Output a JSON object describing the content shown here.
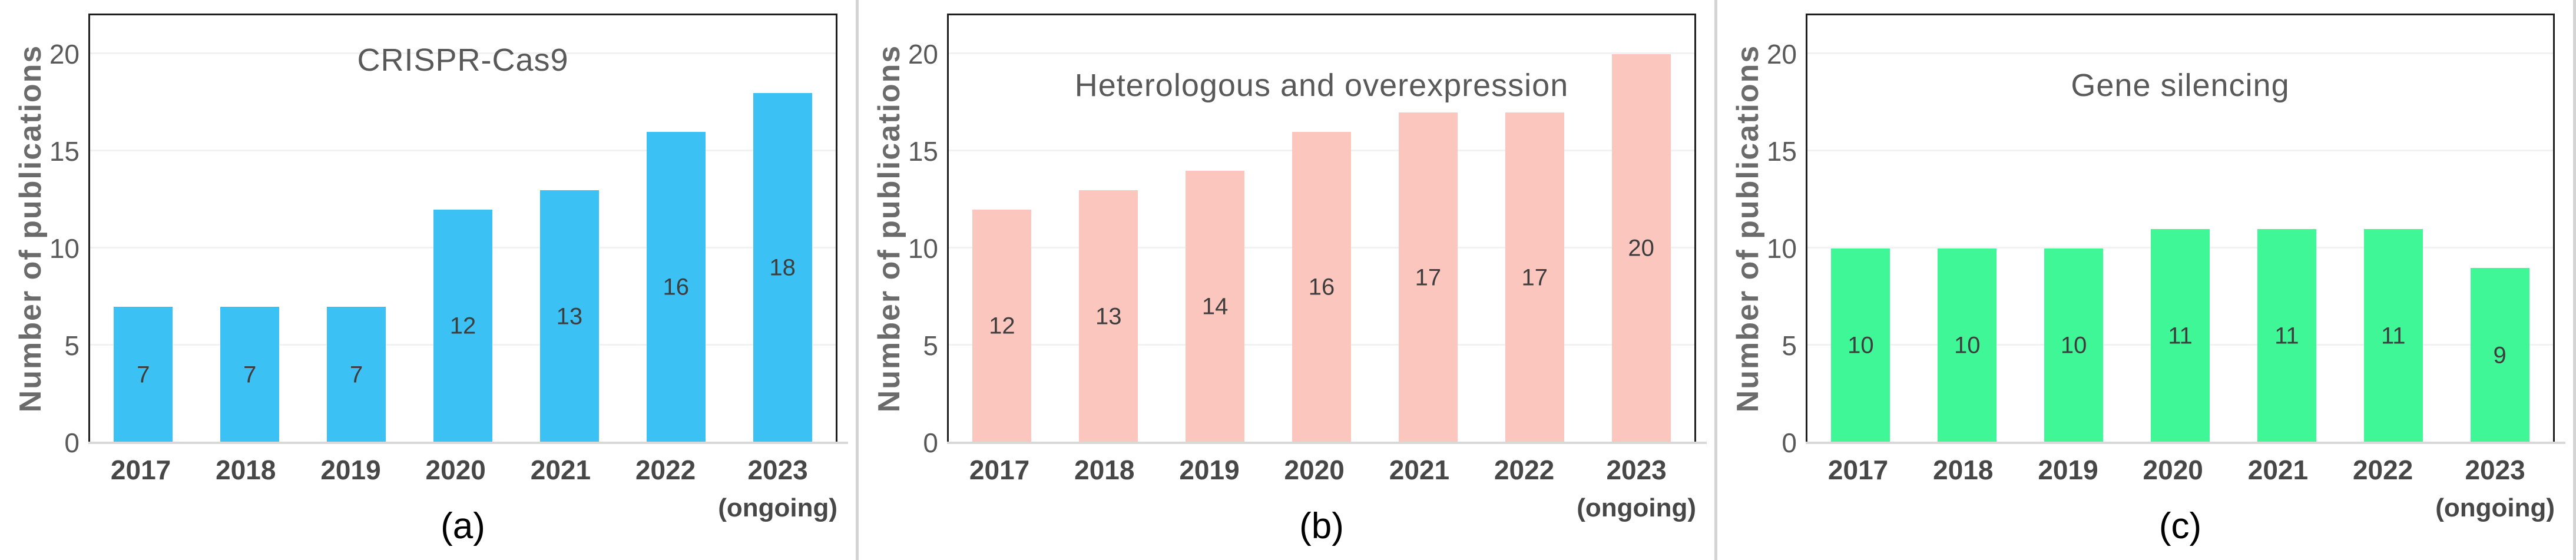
{
  "figure": {
    "ylabel": "Number of publications",
    "last_category_note": "(ongoing)",
    "grid_color": "#f2f2f2",
    "baseline_color": "#d8d8d8",
    "axis_border_color": "#1f1f1f",
    "text_gray": "#595959"
  },
  "chart_data": [
    {
      "type": "bar",
      "title": "CRISPR-Cas9",
      "caption": "(a)",
      "xlabel": "",
      "ylabel": "Number of publications",
      "categories": [
        "2017",
        "2018",
        "2019",
        "2020",
        "2021",
        "2022",
        "2023"
      ],
      "last_category_note": "(ongoing)",
      "values": [
        7,
        7,
        7,
        12,
        13,
        16,
        18
      ],
      "bar_color": "#3cc1f4",
      "ylim": [
        0,
        22
      ],
      "yticks": [
        0,
        5,
        10,
        15,
        20
      ],
      "grid": true,
      "legend": "none"
    },
    {
      "type": "bar",
      "title": "Heterologous and overexpression",
      "caption": "(b)",
      "xlabel": "",
      "ylabel": "Number of publications",
      "categories": [
        "2017",
        "2018",
        "2019",
        "2020",
        "2021",
        "2022",
        "2023"
      ],
      "last_category_note": "(ongoing)",
      "values": [
        12,
        13,
        14,
        16,
        17,
        17,
        20
      ],
      "bar_color": "#fbc6bd",
      "ylim": [
        0,
        22
      ],
      "yticks": [
        0,
        5,
        10,
        15,
        20
      ],
      "grid": true,
      "legend": "none"
    },
    {
      "type": "bar",
      "title": "Gene silencing",
      "caption": "(c)",
      "xlabel": "",
      "ylabel": "Number of publications",
      "categories": [
        "2017",
        "2018",
        "2019",
        "2020",
        "2021",
        "2022",
        "2023"
      ],
      "last_category_note": "(ongoing)",
      "values": [
        10,
        10,
        10,
        11,
        11,
        11,
        9
      ],
      "bar_color": "#3ff796",
      "ylim": [
        0,
        22
      ],
      "yticks": [
        0,
        5,
        10,
        15,
        20
      ],
      "grid": true,
      "legend": "none"
    }
  ]
}
